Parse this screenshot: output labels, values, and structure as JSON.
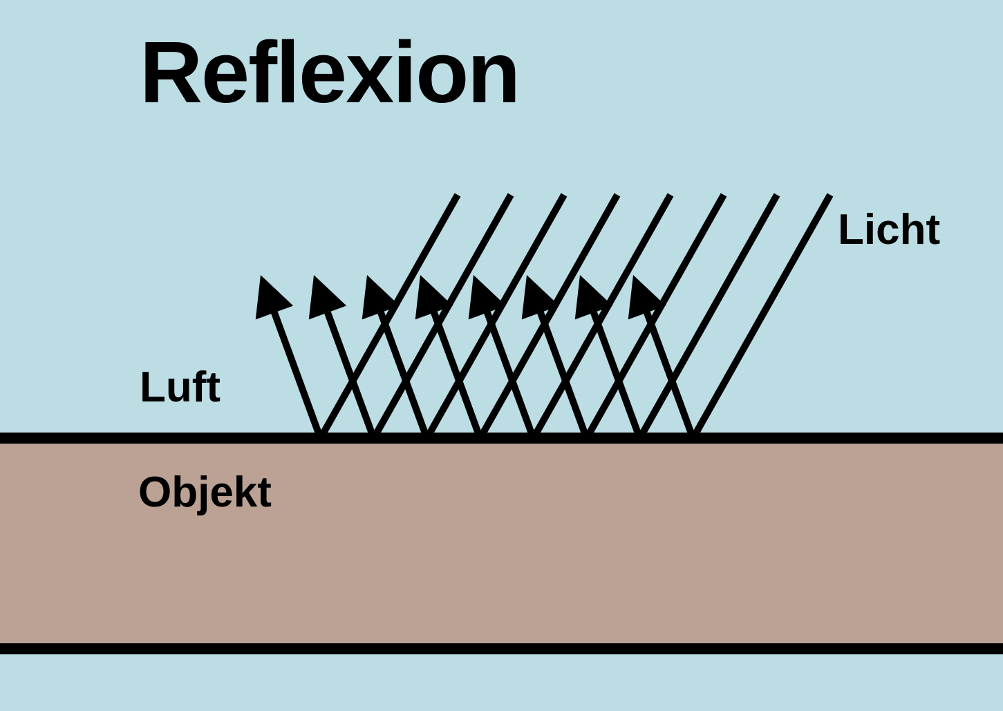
{
  "title": "Reflexion",
  "labels": {
    "light": "Licht",
    "air": "Luft",
    "object": "Objekt"
  },
  "colors": {
    "air": "#bcdde3",
    "object": "#bba294",
    "line": "#000000"
  },
  "incoming_rays": 8,
  "reflected_rays": 8
}
